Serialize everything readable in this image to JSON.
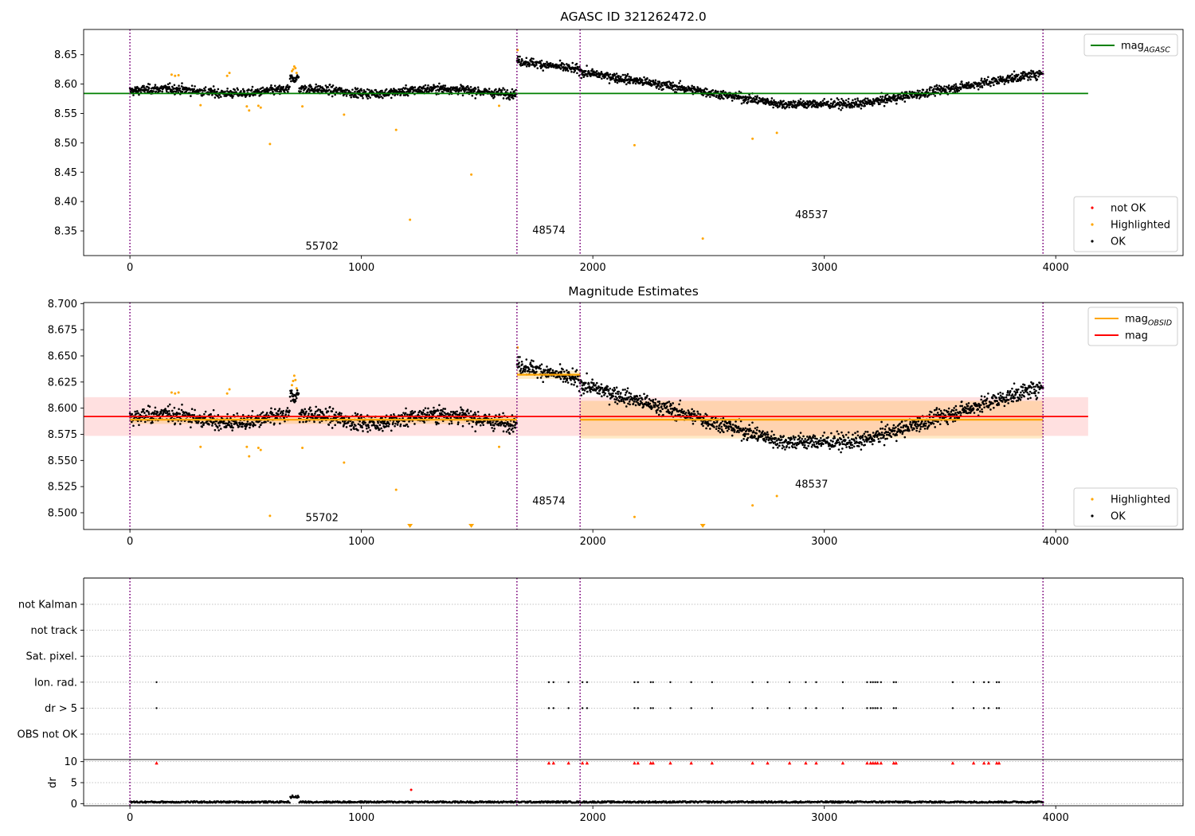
{
  "chart_data": [
    {
      "type": "scatter",
      "title": "AGASC ID 321262472.0",
      "xlim": [
        -200,
        4550
      ],
      "ylim": [
        8.308,
        8.693
      ],
      "xticks": [
        0,
        1000,
        2000,
        3000,
        4000
      ],
      "yticks": [
        8.35,
        8.4,
        8.45,
        8.5,
        8.55,
        8.6,
        8.65
      ],
      "grid": false,
      "hlines": [
        {
          "name": "mag_AGASC",
          "y": 8.584,
          "x_range": [
            -200,
            4140
          ],
          "color": "#008000"
        }
      ],
      "vlines": [
        0,
        1672,
        1945,
        3945
      ],
      "annotations": [
        {
          "text": "55702",
          "x": 830,
          "y": 8.318
        },
        {
          "text": "48574",
          "x": 1810,
          "y": 8.345
        },
        {
          "text": "48537",
          "x": 2945,
          "y": 8.372
        }
      ],
      "legends": [
        {
          "placement": "upper-right",
          "entries": [
            {
              "label": "mag",
              "sub": "AGASC",
              "kind": "line",
              "color": "#008000"
            }
          ]
        },
        {
          "placement": "lower-right",
          "entries": [
            {
              "label": "not OK",
              "kind": "dot",
              "color": "#ff0000"
            },
            {
              "label": "Highlighted",
              "kind": "dot",
              "color": "#ffa500"
            },
            {
              "label": "OK",
              "kind": "dot",
              "color": "#000000"
            }
          ]
        }
      ],
      "highlighted_points": [
        [
          180,
          8.616
        ],
        [
          195,
          8.614
        ],
        [
          210,
          8.615
        ],
        [
          305,
          8.564
        ],
        [
          420,
          8.614
        ],
        [
          430,
          8.619
        ],
        [
          505,
          8.562
        ],
        [
          515,
          8.555
        ],
        [
          555,
          8.563
        ],
        [
          565,
          8.56
        ],
        [
          605,
          8.498
        ],
        [
          700,
          8.622
        ],
        [
          705,
          8.625
        ],
        [
          710,
          8.63
        ],
        [
          715,
          8.627
        ],
        [
          720,
          8.619
        ],
        [
          745,
          8.562
        ],
        [
          925,
          8.548
        ],
        [
          1150,
          8.522
        ],
        [
          1210,
          8.369
        ],
        [
          1475,
          8.446
        ],
        [
          1595,
          8.563
        ],
        [
          1675,
          8.658
        ],
        [
          2180,
          8.496
        ],
        [
          2475,
          8.337
        ],
        [
          2690,
          8.507
        ],
        [
          2795,
          8.517
        ]
      ]
    },
    {
      "type": "scatter",
      "title": "Magnitude Estimates",
      "xlim": [
        -200,
        4550
      ],
      "ylim": [
        8.484,
        8.701
      ],
      "xticks": [
        0,
        1000,
        2000,
        3000,
        4000
      ],
      "yticks": [
        8.5,
        8.525,
        8.55,
        8.575,
        8.6,
        8.625,
        8.65,
        8.675,
        8.7
      ],
      "grid": false,
      "hlines": [
        {
          "name": "mag",
          "y": 8.592,
          "x_range": [
            -200,
            4140
          ],
          "color": "#ff0000",
          "band": [
            8.5735,
            8.6105
          ],
          "band_color": "#ff0000"
        }
      ],
      "obsid_segments": [
        {
          "x_range": [
            0,
            1672
          ],
          "y": 8.589,
          "band": [
            8.585,
            8.593
          ]
        },
        {
          "x_range": [
            1672,
            1945
          ],
          "y": 8.632,
          "band": [
            8.628,
            8.636
          ]
        },
        {
          "x_range": [
            1945,
            3945
          ],
          "y": 8.589,
          "band": [
            8.571,
            8.607
          ]
        }
      ],
      "vlines": [
        0,
        1672,
        1945,
        3945
      ],
      "annotations": [
        {
          "text": "55702",
          "x": 830,
          "y": 8.492
        },
        {
          "text": "48574",
          "x": 1810,
          "y": 8.508
        },
        {
          "text": "48537",
          "x": 2945,
          "y": 8.524
        }
      ],
      "legends": [
        {
          "placement": "upper-right",
          "entries": [
            {
              "label": "mag",
              "sub": "OBSID",
              "kind": "line",
              "color": "#ffa500"
            },
            {
              "label": "mag",
              "kind": "line",
              "color": "#ff0000"
            }
          ]
        },
        {
          "placement": "lower-right",
          "entries": [
            {
              "label": "Highlighted",
              "kind": "dot",
              "color": "#ffa500"
            },
            {
              "label": "OK",
              "kind": "dot",
              "color": "#000000"
            }
          ]
        }
      ],
      "highlighted_points": [
        [
          180,
          8.615
        ],
        [
          195,
          8.614
        ],
        [
          210,
          8.615
        ],
        [
          305,
          8.563
        ],
        [
          420,
          8.614
        ],
        [
          430,
          8.618
        ],
        [
          505,
          8.563
        ],
        [
          515,
          8.554
        ],
        [
          555,
          8.562
        ],
        [
          565,
          8.56
        ],
        [
          605,
          8.497
        ],
        [
          700,
          8.622
        ],
        [
          705,
          8.626
        ],
        [
          710,
          8.631
        ],
        [
          715,
          8.627
        ],
        [
          720,
          8.619
        ],
        [
          745,
          8.562
        ],
        [
          925,
          8.548
        ],
        [
          1150,
          8.522
        ],
        [
          1595,
          8.563
        ],
        [
          1675,
          8.658
        ],
        [
          2180,
          8.496
        ],
        [
          2690,
          8.507
        ],
        [
          2795,
          8.516
        ]
      ],
      "clipped_markers": [
        1210,
        1475,
        2475
      ]
    },
    {
      "type": "scatter",
      "title": "",
      "xlim": [
        -200,
        4550
      ],
      "ycategories": [
        "not Kalman",
        "not track",
        "Sat. pixel.",
        "Ion. rad.",
        "dr > 5",
        "OBS not OK"
      ],
      "grid": true,
      "vlines": [
        0,
        1672,
        1945,
        3945
      ],
      "flag_points": {
        "Ion. rad.": [
          115,
          1810,
          1830,
          1895,
          1955,
          1975,
          2180,
          2195,
          2250,
          2260,
          2335,
          2425,
          2515,
          2690,
          2755,
          2850,
          2920,
          2965,
          3080,
          3185,
          3200,
          3210,
          3220,
          3230,
          3245,
          3300,
          3310,
          3555,
          3645,
          3690,
          3710,
          3745,
          3755
        ],
        "dr > 5": [
          115,
          1810,
          1830,
          1895,
          1955,
          1975,
          2180,
          2195,
          2250,
          2260,
          2335,
          2425,
          2515,
          2690,
          2755,
          2850,
          2920,
          2965,
          3080,
          3185,
          3200,
          3210,
          3220,
          3230,
          3245,
          3300,
          3310,
          3555,
          3645,
          3690,
          3710,
          3745,
          3755
        ]
      }
    },
    {
      "type": "scatter",
      "title": "",
      "ylabel": "dr",
      "xlim": [
        -200,
        4550
      ],
      "ylim": [
        -0.5,
        10.5
      ],
      "xticks": [
        0,
        1000,
        2000,
        3000,
        4000
      ],
      "yticks": [
        0,
        5,
        10
      ],
      "grid": true,
      "vlines": [
        0,
        1672,
        1945,
        3945
      ],
      "clipped_x": [
        115,
        1810,
        1830,
        1895,
        1955,
        1975,
        2180,
        2195,
        2250,
        2260,
        2335,
        2425,
        2515,
        2690,
        2755,
        2850,
        2920,
        2965,
        3080,
        3185,
        3200,
        3210,
        3220,
        3230,
        3245,
        3300,
        3310,
        3555,
        3645,
        3690,
        3710,
        3745,
        3755
      ],
      "notok_points": [
        [
          1215,
          3.3
        ]
      ]
    }
  ]
}
